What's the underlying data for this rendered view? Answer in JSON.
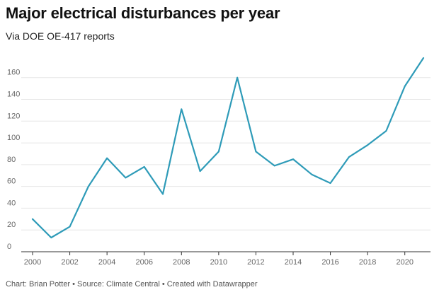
{
  "header": {
    "title": "Major electrical disturbances per year",
    "subtitle": "Via DOE OE-417 reports"
  },
  "footer": {
    "text": "Chart: Brian Potter • Source: Climate Central • Created with Datawrapper"
  },
  "colors": {
    "line": "#2e9bb8",
    "grid": "#e6e6e6",
    "axis": "#333333",
    "tick_text": "#666666"
  },
  "chart_data": {
    "type": "line",
    "title": "Major electrical disturbances per year",
    "subtitle": "Via DOE OE-417 reports",
    "xlabel": "",
    "ylabel": "",
    "x": [
      2000,
      2001,
      2002,
      2003,
      2004,
      2005,
      2006,
      2007,
      2008,
      2009,
      2010,
      2011,
      2012,
      2013,
      2014,
      2015,
      2016,
      2017,
      2018,
      2019,
      2020,
      2021
    ],
    "series": [
      {
        "values": [
          30,
          13,
          23,
          60,
          86,
          68,
          78,
          53,
          131,
          74,
          92,
          160,
          92,
          79,
          85,
          71,
          63,
          87,
          98,
          111,
          152,
          178
        ]
      }
    ],
    "xlim": [
      2000,
      2021
    ],
    "ylim": [
      0,
      178
    ],
    "x_ticks": [
      "2000",
      "2002",
      "2004",
      "2006",
      "2008",
      "2010",
      "2012",
      "2014",
      "2016",
      "2018",
      "2020"
    ],
    "y_ticks": [
      "0",
      "20",
      "40",
      "60",
      "80",
      "100",
      "120",
      "140",
      "160"
    ],
    "grid": true,
    "legend": "none"
  }
}
